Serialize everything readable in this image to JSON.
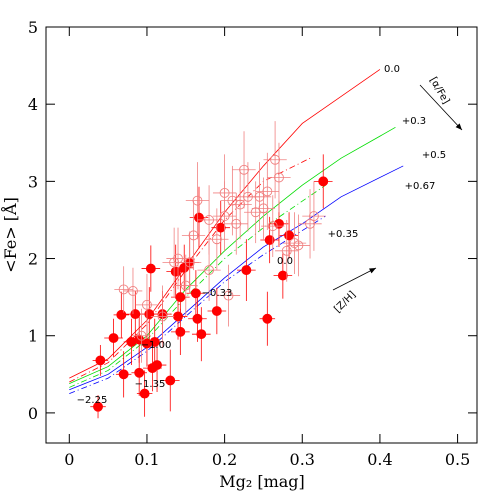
{
  "chart_data": {
    "type": "scatter",
    "x_label": "Mg₂ [mag]",
    "y_label": "<Fe> [Å]",
    "xlim": [
      -0.03,
      0.525
    ],
    "ylim": [
      -0.39,
      5
    ],
    "xticks": [
      0,
      0.1,
      0.2,
      0.3,
      0.4,
      0.5
    ],
    "yticks": [
      0,
      1,
      2,
      3,
      4,
      5
    ],
    "series": [
      {
        "marker": "filled",
        "color": "#ff0000",
        "x": [
          0.037,
          0.04,
          0.057,
          0.067,
          0.07,
          0.08,
          0.085,
          0.09,
          0.09,
          0.097,
          0.1,
          0.103,
          0.105,
          0.107,
          0.11,
          0.113,
          0.12,
          0.13,
          0.137,
          0.14,
          0.143,
          0.143,
          0.148,
          0.155,
          0.163,
          0.165,
          0.167,
          0.17,
          0.19,
          0.195,
          0.228,
          0.255,
          0.258,
          0.27,
          0.275,
          0.283,
          0.327
        ],
        "values": [
          0.08,
          0.68,
          0.97,
          1.27,
          0.5,
          0.92,
          1.28,
          0.52,
          0.95,
          0.25,
          0.9,
          1.28,
          1.87,
          0.58,
          0.92,
          0.62,
          1.28,
          0.42,
          1.83,
          1.25,
          1.5,
          1.05,
          1.88,
          1.95,
          1.55,
          1.22,
          2.53,
          1.02,
          1.32,
          2.4,
          1.85,
          1.22,
          2.24,
          2.45,
          1.78,
          2.3,
          3.0
        ],
        "xerr": [
          0.01,
          0.01,
          0.012,
          0.01,
          0.01,
          0.01,
          0.012,
          0.01,
          0.012,
          0.01,
          0.01,
          0.012,
          0.012,
          0.012,
          0.012,
          0.012,
          0.012,
          0.012,
          0.012,
          0.012,
          0.012,
          0.012,
          0.012,
          0.012,
          0.012,
          0.012,
          0.012,
          0.012,
          0.012,
          0.012,
          0.012,
          0.01,
          0.012,
          0.012,
          0.012,
          0.012,
          0.012
        ],
        "yerr": [
          0.15,
          0.2,
          0.25,
          0.3,
          0.3,
          0.3,
          0.3,
          0.3,
          0.3,
          0.3,
          0.3,
          0.35,
          0.3,
          0.3,
          0.3,
          0.35,
          0.3,
          0.4,
          0.35,
          0.3,
          0.3,
          0.3,
          0.3,
          0.35,
          0.3,
          0.3,
          0.4,
          0.35,
          0.3,
          0.35,
          0.4,
          0.35,
          0.3,
          0.3,
          0.3,
          0.3,
          0.35
        ]
      },
      {
        "marker": "open",
        "color": "#f08080",
        "x": [
          0.07,
          0.082,
          0.093,
          0.1,
          0.12,
          0.135,
          0.14,
          0.15,
          0.155,
          0.16,
          0.165,
          0.18,
          0.18,
          0.19,
          0.2,
          0.2,
          0.205,
          0.21,
          0.215,
          0.22,
          0.225,
          0.23,
          0.24,
          0.245,
          0.25,
          0.255,
          0.262,
          0.265,
          0.27,
          0.28,
          0.29,
          0.295,
          0.31,
          0.315
        ],
        "values": [
          1.6,
          1.58,
          1.0,
          1.4,
          1.25,
          1.95,
          2.0,
          1.65,
          1.95,
          2.3,
          2.75,
          1.85,
          2.5,
          2.25,
          2.55,
          2.85,
          1.52,
          2.75,
          2.45,
          2.7,
          3.15,
          2.8,
          2.6,
          2.8,
          2.65,
          2.87,
          2.42,
          3.28,
          3.05,
          2.1,
          2.2,
          2.17,
          2.45,
          2.55
        ],
        "xerr": [
          0.012,
          0.012,
          0.012,
          0.015,
          0.015,
          0.015,
          0.015,
          0.015,
          0.015,
          0.015,
          0.015,
          0.015,
          0.015,
          0.015,
          0.015,
          0.015,
          0.015,
          0.015,
          0.015,
          0.015,
          0.015,
          0.015,
          0.015,
          0.015,
          0.015,
          0.015,
          0.015,
          0.015,
          0.015,
          0.015,
          0.015,
          0.015,
          0.015,
          0.015
        ],
        "yerr": [
          0.3,
          0.3,
          0.35,
          0.4,
          0.4,
          0.45,
          0.4,
          0.4,
          0.4,
          0.45,
          0.5,
          0.4,
          0.45,
          0.4,
          0.45,
          0.5,
          0.4,
          0.45,
          0.4,
          0.45,
          0.5,
          0.45,
          0.4,
          0.45,
          0.4,
          0.5,
          0.4,
          0.5,
          0.45,
          0.4,
          0.4,
          0.4,
          0.45,
          0.45
        ]
      }
    ],
    "lines": [
      {
        "color": "#ff0000",
        "style": "solid",
        "x": [
          0,
          0.05,
          0.1,
          0.15,
          0.2,
          0.25,
          0.3,
          0.35,
          0.4
        ],
        "y": [
          0.45,
          0.7,
          1.2,
          1.9,
          2.6,
          3.2,
          3.75,
          4.1,
          4.45
        ]
      },
      {
        "color": "#ff0000",
        "style": "dashdot",
        "x": [
          0,
          0.05,
          0.1,
          0.15,
          0.2,
          0.25,
          0.31
        ],
        "y": [
          0.4,
          0.65,
          1.15,
          1.85,
          2.5,
          3.0,
          3.3
        ]
      },
      {
        "color": "#00dd00",
        "style": "solid",
        "x": [
          0,
          0.05,
          0.1,
          0.15,
          0.2,
          0.25,
          0.3,
          0.35,
          0.42
        ],
        "y": [
          0.38,
          0.6,
          1.0,
          1.6,
          2.1,
          2.55,
          2.95,
          3.3,
          3.7
        ]
      },
      {
        "color": "#00dd00",
        "style": "dashdot",
        "x": [
          0,
          0.05,
          0.1,
          0.15,
          0.2,
          0.25,
          0.33
        ],
        "y": [
          0.33,
          0.55,
          0.95,
          1.5,
          2.0,
          2.4,
          2.95
        ]
      },
      {
        "color": "#0000ff",
        "style": "solid",
        "x": [
          0,
          0.05,
          0.1,
          0.15,
          0.2,
          0.25,
          0.3,
          0.35,
          0.43
        ],
        "y": [
          0.3,
          0.5,
          0.85,
          1.3,
          1.75,
          2.15,
          2.45,
          2.8,
          3.2
        ]
      },
      {
        "color": "#0000ff",
        "style": "dashdot",
        "x": [
          0,
          0.05,
          0.1,
          0.15,
          0.2,
          0.25,
          0.33
        ],
        "y": [
          0.25,
          0.45,
          0.8,
          1.25,
          1.7,
          2.05,
          2.55
        ]
      }
    ],
    "annotations": [
      "0.0",
      "[α/Fe]",
      "+0.3",
      "+0.5",
      "+0.67",
      "+0.35",
      "0.0",
      "−0.33",
      "[Z/H]",
      "−1.00",
      "−1.35",
      "−2.25"
    ]
  }
}
